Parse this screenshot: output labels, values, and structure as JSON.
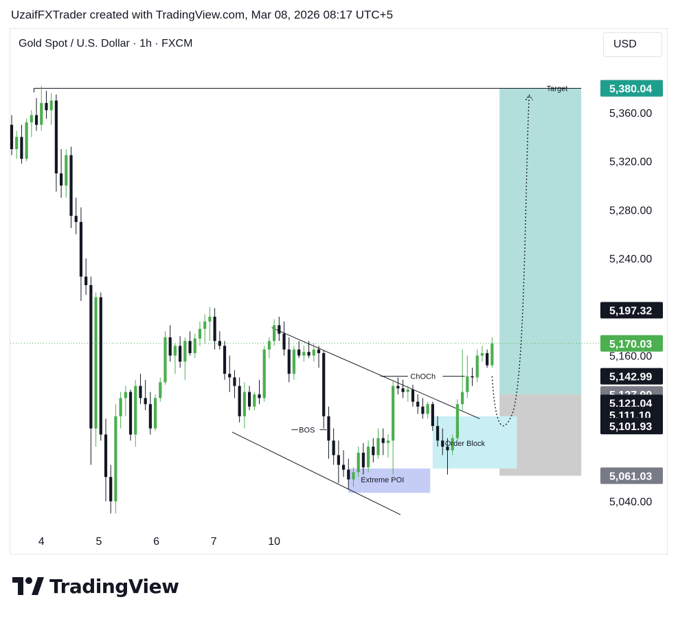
{
  "header": {
    "attribution": "UzaifFXTrader created with TradingView.com, Mar 08, 2026 08:17 UTC+5"
  },
  "symbol": {
    "title": "Gold Spot / U.S. Dollar · 1h · FXCM"
  },
  "currency_button": {
    "label": "USD"
  },
  "logo": {
    "text": "TradingView"
  },
  "colors": {
    "up": "#4caf50",
    "down": "#131722",
    "target_zone": "#b2dfdb",
    "stop_zone": "#c4c4c4",
    "order_block": "#c9eff4",
    "extreme_poi": "#c5cdf6",
    "last_price": "#4caf50",
    "target_badge": "#1e9f8d",
    "dark_badge": "#131722",
    "grey_badge": "#787b86"
  },
  "chart_data": {
    "type": "candlestick",
    "symbol": "XAUUSD",
    "timeframe": "1h",
    "y_axis": {
      "min": 5030,
      "max": 5395,
      "ticks": [
        5360,
        5320,
        5280,
        5240,
        5160,
        5040
      ],
      "tick_labels": [
        "5,360.00",
        "5,320.00",
        "5,280.00",
        "5,240.00",
        "5,160.00",
        "5,040.00"
      ]
    },
    "x_axis": {
      "labels": [
        "4",
        "5",
        "6",
        "7",
        "10"
      ],
      "positions": [
        6.0,
        17.6,
        29.2,
        40.8,
        53
      ]
    },
    "price_badges": [
      {
        "value": 5380.09,
        "label": "5,380.09",
        "style": "dark"
      },
      {
        "value": 5380.04,
        "label": "5,380.04",
        "style": "target"
      },
      {
        "value": 5197.32,
        "label": "5,197.32",
        "style": "dark"
      },
      {
        "value": 5170.03,
        "label": "5,170.03",
        "style": "last"
      },
      {
        "value": 5142.99,
        "label": "5,142.99",
        "style": "dark"
      },
      {
        "value": 5127.99,
        "label": "5,127.99",
        "style": "grey"
      },
      {
        "value": 5121.04,
        "label": "5,121.04",
        "style": "dark"
      },
      {
        "value": 5111.1,
        "label": "5,111.10",
        "style": "dark"
      },
      {
        "value": 5101.93,
        "label": "5,101.93",
        "style": "dark"
      },
      {
        "value": 5061.03,
        "label": "5,061.03",
        "style": "grey"
      }
    ],
    "candles": [
      {
        "i": 0,
        "o": 5350,
        "h": 5358,
        "l": 5325,
        "c": 5330
      },
      {
        "i": 1,
        "o": 5330,
        "h": 5345,
        "l": 5322,
        "c": 5340
      },
      {
        "i": 2,
        "o": 5340,
        "h": 5350,
        "l": 5318,
        "c": 5322
      },
      {
        "i": 3,
        "o": 5322,
        "h": 5355,
        "l": 5320,
        "c": 5352
      },
      {
        "i": 4,
        "o": 5352,
        "h": 5362,
        "l": 5340,
        "c": 5358
      },
      {
        "i": 5,
        "o": 5358,
        "h": 5372,
        "l": 5345,
        "c": 5350
      },
      {
        "i": 6,
        "o": 5350,
        "h": 5382,
        "l": 5345,
        "c": 5368
      },
      {
        "i": 7,
        "o": 5368,
        "h": 5378,
        "l": 5355,
        "c": 5362
      },
      {
        "i": 8,
        "o": 5362,
        "h": 5376,
        "l": 5350,
        "c": 5370
      },
      {
        "i": 9,
        "o": 5370,
        "h": 5375,
        "l": 5295,
        "c": 5310
      },
      {
        "i": 10,
        "o": 5310,
        "h": 5330,
        "l": 5290,
        "c": 5300
      },
      {
        "i": 11,
        "o": 5300,
        "h": 5330,
        "l": 5290,
        "c": 5325
      },
      {
        "i": 12,
        "o": 5325,
        "h": 5332,
        "l": 5265,
        "c": 5275
      },
      {
        "i": 13,
        "o": 5275,
        "h": 5290,
        "l": 5260,
        "c": 5270
      },
      {
        "i": 14,
        "o": 5270,
        "h": 5282,
        "l": 5205,
        "c": 5225
      },
      {
        "i": 15,
        "o": 5225,
        "h": 5240,
        "l": 5210,
        "c": 5218
      },
      {
        "i": 16,
        "o": 5218,
        "h": 5225,
        "l": 5070,
        "c": 5100
      },
      {
        "i": 17,
        "o": 5100,
        "h": 5212,
        "l": 5085,
        "c": 5208
      },
      {
        "i": 18,
        "o": 5208,
        "h": 5212,
        "l": 5090,
        "c": 5095
      },
      {
        "i": 19,
        "o": 5095,
        "h": 5108,
        "l": 5040,
        "c": 5060
      },
      {
        "i": 20,
        "o": 5060,
        "h": 5070,
        "l": 5030,
        "c": 5040
      },
      {
        "i": 21,
        "o": 5040,
        "h": 5120,
        "l": 5030,
        "c": 5110
      },
      {
        "i": 22,
        "o": 5110,
        "h": 5130,
        "l": 5100,
        "c": 5125
      },
      {
        "i": 23,
        "o": 5125,
        "h": 5135,
        "l": 5110,
        "c": 5130
      },
      {
        "i": 24,
        "o": 5130,
        "h": 5132,
        "l": 5090,
        "c": 5095
      },
      {
        "i": 25,
        "o": 5095,
        "h": 5140,
        "l": 5085,
        "c": 5135
      },
      {
        "i": 26,
        "o": 5135,
        "h": 5145,
        "l": 5120,
        "c": 5125
      },
      {
        "i": 27,
        "o": 5125,
        "h": 5140,
        "l": 5115,
        "c": 5120
      },
      {
        "i": 28,
        "o": 5120,
        "h": 5130,
        "l": 5095,
        "c": 5100
      },
      {
        "i": 29,
        "o": 5100,
        "h": 5128,
        "l": 5098,
        "c": 5125
      },
      {
        "i": 30,
        "o": 5125,
        "h": 5142,
        "l": 5122,
        "c": 5138
      },
      {
        "i": 31,
        "o": 5138,
        "h": 5180,
        "l": 5136,
        "c": 5175
      },
      {
        "i": 32,
        "o": 5175,
        "h": 5185,
        "l": 5155,
        "c": 5160
      },
      {
        "i": 33,
        "o": 5160,
        "h": 5170,
        "l": 5145,
        "c": 5168
      },
      {
        "i": 34,
        "o": 5168,
        "h": 5176,
        "l": 5150,
        "c": 5155
      },
      {
        "i": 35,
        "o": 5155,
        "h": 5175,
        "l": 5140,
        "c": 5172
      },
      {
        "i": 36,
        "o": 5172,
        "h": 5180,
        "l": 5160,
        "c": 5162
      },
      {
        "i": 37,
        "o": 5162,
        "h": 5178,
        "l": 5158,
        "c": 5174
      },
      {
        "i": 38,
        "o": 5174,
        "h": 5188,
        "l": 5168,
        "c": 5182
      },
      {
        "i": 39,
        "o": 5182,
        "h": 5194,
        "l": 5170,
        "c": 5188
      },
      {
        "i": 40,
        "o": 5188,
        "h": 5200,
        "l": 5172,
        "c": 5192
      },
      {
        "i": 41,
        "o": 5192,
        "h": 5199,
        "l": 5165,
        "c": 5172
      },
      {
        "i": 42,
        "o": 5172,
        "h": 5180,
        "l": 5165,
        "c": 5168
      },
      {
        "i": 43,
        "o": 5168,
        "h": 5172,
        "l": 5140,
        "c": 5145
      },
      {
        "i": 44,
        "o": 5145,
        "h": 5160,
        "l": 5130,
        "c": 5142
      },
      {
        "i": 45,
        "o": 5142,
        "h": 5148,
        "l": 5125,
        "c": 5135
      },
      {
        "i": 46,
        "o": 5135,
        "h": 5142,
        "l": 5105,
        "c": 5110
      },
      {
        "i": 47,
        "o": 5110,
        "h": 5138,
        "l": 5100,
        "c": 5130
      },
      {
        "i": 48,
        "o": 5130,
        "h": 5135,
        "l": 5115,
        "c": 5118
      },
      {
        "i": 49,
        "o": 5118,
        "h": 5130,
        "l": 5115,
        "c": 5128
      },
      {
        "i": 50,
        "o": 5128,
        "h": 5140,
        "l": 5120,
        "c": 5125
      },
      {
        "i": 51,
        "o": 5125,
        "h": 5168,
        "l": 5122,
        "c": 5165
      },
      {
        "i": 52,
        "o": 5165,
        "h": 5175,
        "l": 5158,
        "c": 5172
      },
      {
        "i": 53,
        "o": 5172,
        "h": 5190,
        "l": 5168,
        "c": 5185
      },
      {
        "i": 54,
        "o": 5185,
        "h": 5192,
        "l": 5172,
        "c": 5178
      },
      {
        "i": 55,
        "o": 5178,
        "h": 5188,
        "l": 5160,
        "c": 5165
      },
      {
        "i": 56,
        "o": 5165,
        "h": 5175,
        "l": 5138,
        "c": 5145
      },
      {
        "i": 57,
        "o": 5145,
        "h": 5168,
        "l": 5140,
        "c": 5165
      },
      {
        "i": 58,
        "o": 5165,
        "h": 5172,
        "l": 5158,
        "c": 5160
      },
      {
        "i": 59,
        "o": 5160,
        "h": 5168,
        "l": 5155,
        "c": 5163
      },
      {
        "i": 60,
        "o": 5163,
        "h": 5172,
        "l": 5158,
        "c": 5160
      },
      {
        "i": 61,
        "o": 5160,
        "h": 5170,
        "l": 5155,
        "c": 5165
      },
      {
        "i": 62,
        "o": 5165,
        "h": 5168,
        "l": 5150,
        "c": 5162
      },
      {
        "i": 63,
        "o": 5162,
        "h": 5164,
        "l": 5100,
        "c": 5110
      },
      {
        "i": 64,
        "o": 5110,
        "h": 5118,
        "l": 5075,
        "c": 5090
      },
      {
        "i": 65,
        "o": 5090,
        "h": 5100,
        "l": 5070,
        "c": 5078
      },
      {
        "i": 66,
        "o": 5078,
        "h": 5090,
        "l": 5055,
        "c": 5070
      },
      {
        "i": 67,
        "o": 5070,
        "h": 5082,
        "l": 5060,
        "c": 5066
      },
      {
        "i": 68,
        "o": 5066,
        "h": 5075,
        "l": 5050,
        "c": 5058
      },
      {
        "i": 69,
        "o": 5058,
        "h": 5068,
        "l": 5052,
        "c": 5064
      },
      {
        "i": 70,
        "o": 5064,
        "h": 5085,
        "l": 5060,
        "c": 5080
      },
      {
        "i": 71,
        "o": 5080,
        "h": 5088,
        "l": 5062,
        "c": 5068
      },
      {
        "i": 72,
        "o": 5068,
        "h": 5090,
        "l": 5064,
        "c": 5085
      },
      {
        "i": 73,
        "o": 5085,
        "h": 5092,
        "l": 5072,
        "c": 5078
      },
      {
        "i": 74,
        "o": 5078,
        "h": 5100,
        "l": 5075,
        "c": 5092
      },
      {
        "i": 75,
        "o": 5092,
        "h": 5100,
        "l": 5078,
        "c": 5088
      },
      {
        "i": 76,
        "o": 5088,
        "h": 5095,
        "l": 5076,
        "c": 5090
      },
      {
        "i": 77,
        "o": 5090,
        "h": 5140,
        "l": 5062,
        "c": 5135
      },
      {
        "i": 78,
        "o": 5135,
        "h": 5142,
        "l": 5128,
        "c": 5133
      },
      {
        "i": 79,
        "o": 5133,
        "h": 5140,
        "l": 5125,
        "c": 5130
      },
      {
        "i": 80,
        "o": 5130,
        "h": 5135,
        "l": 5122,
        "c": 5132
      },
      {
        "i": 81,
        "o": 5132,
        "h": 5136,
        "l": 5118,
        "c": 5122
      },
      {
        "i": 82,
        "o": 5122,
        "h": 5128,
        "l": 5112,
        "c": 5118
      },
      {
        "i": 83,
        "o": 5118,
        "h": 5125,
        "l": 5108,
        "c": 5112
      },
      {
        "i": 84,
        "o": 5112,
        "h": 5122,
        "l": 5108,
        "c": 5120
      },
      {
        "i": 85,
        "o": 5120,
        "h": 5122,
        "l": 5098,
        "c": 5102
      },
      {
        "i": 86,
        "o": 5102,
        "h": 5110,
        "l": 5085,
        "c": 5090
      },
      {
        "i": 87,
        "o": 5090,
        "h": 5100,
        "l": 5078,
        "c": 5085
      },
      {
        "i": 88,
        "o": 5085,
        "h": 5092,
        "l": 5062,
        "c": 5082
      },
      {
        "i": 89,
        "o": 5082,
        "h": 5095,
        "l": 5078,
        "c": 5092
      },
      {
        "i": 90,
        "o": 5092,
        "h": 5124,
        "l": 5090,
        "c": 5120
      },
      {
        "i": 91,
        "o": 5120,
        "h": 5165,
        "l": 5115,
        "c": 5130
      },
      {
        "i": 92,
        "o": 5130,
        "h": 5160,
        "l": 5125,
        "c": 5143
      },
      {
        "i": 93,
        "o": 5143,
        "h": 5150,
        "l": 5135,
        "c": 5142
      },
      {
        "i": 94,
        "o": 5142,
        "h": 5165,
        "l": 5138,
        "c": 5160
      },
      {
        "i": 95,
        "o": 5160,
        "h": 5168,
        "l": 5155,
        "c": 5162
      },
      {
        "i": 96,
        "o": 5162,
        "h": 5165,
        "l": 5150,
        "c": 5152
      },
      {
        "i": 97,
        "o": 5152,
        "h": 5175,
        "l": 5150,
        "c": 5170
      }
    ],
    "zones": [
      {
        "name": "target-zone",
        "x_start": 98.5,
        "x_end": 115,
        "top": 5380.04,
        "bottom": 5127.99
      },
      {
        "name": "stop-zone",
        "x_start": 98.5,
        "x_end": 115,
        "top": 5127.99,
        "bottom": 5061.03
      },
      {
        "name": "order-block",
        "x_start": 85,
        "x_end": 102,
        "top": 5110,
        "bottom": 5067
      },
      {
        "name": "extreme-poi",
        "x_start": 68,
        "x_end": 84.5,
        "top": 5067,
        "bottom": 5047
      }
    ],
    "trendlines": [
      {
        "name": "channel-upper",
        "x1": 52.5,
        "y1": 5183,
        "x2": 94.5,
        "y2": 5108
      },
      {
        "name": "channel-lower",
        "x1": 44.5,
        "y1": 5097,
        "x2": 78.5,
        "y2": 5029
      }
    ],
    "horizontal_lines": [
      {
        "name": "target-line",
        "x1": 4.5,
        "x2": 115,
        "y": 5380.09
      }
    ],
    "annotations": [
      {
        "name": "target-label",
        "text": "Target",
        "x": 108,
        "y": 5380.09
      },
      {
        "name": "bos-label",
        "text": "BOS",
        "x": 58,
        "y": 5099
      },
      {
        "name": "choch-label",
        "text": "ChOCh",
        "x": 80.5,
        "y": 5142.99
      },
      {
        "name": "order-block-label",
        "text": "Order Block",
        "x": 87.5,
        "y": 5088
      },
      {
        "name": "extreme-poi-label",
        "text": "Extreme POI",
        "x": 70.5,
        "y": 5058
      }
    ],
    "last_price": 5170.03,
    "projection": {
      "from_x": 97,
      "from_y": 5142.99,
      "via_x": 101,
      "via_y": 5111.1,
      "to_x": 104.5,
      "to_y": 5380.04
    }
  }
}
